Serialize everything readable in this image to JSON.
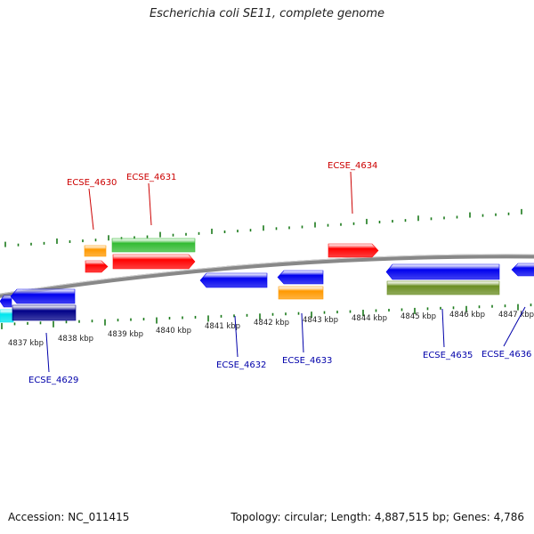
{
  "title": "Escherichia coli SE11, complete genome",
  "footer": {
    "accession": "Accession: NC_011415",
    "topology": "Topology: circular; Length: 4,887,515 bp; Genes: 4,786"
  },
  "colors": {
    "forward_label": "#cc0000",
    "reverse_label": "#0000aa",
    "tick": "#1a7a1a",
    "backbone": "#888888",
    "red": "#ff0000",
    "green": "#33bb33",
    "orange": "#ff9900",
    "blue": "#0000ee",
    "navy": "#000088",
    "olive": "#6b8e23",
    "cyan": "#00e5ee"
  },
  "axis_labels": [
    "4837 kbp",
    "4838 kbp",
    "4839 kbp",
    "4840 kbp",
    "4841 kbp",
    "4842 kbp",
    "4843 kbp",
    "4844 kbp",
    "4845 kbp",
    "4846 kbp",
    "4847 kbp"
  ],
  "gene_labels": [
    {
      "text": "ECSE_4630",
      "strand": "forward"
    },
    {
      "text": "ECSE_4631",
      "strand": "forward"
    },
    {
      "text": "ECSE_4634",
      "strand": "forward"
    },
    {
      "text": "ECSE_4629",
      "strand": "reverse"
    },
    {
      "text": "ECSE_4632",
      "strand": "reverse"
    },
    {
      "text": "ECSE_4633",
      "strand": "reverse"
    },
    {
      "text": "ECSE_4635",
      "strand": "reverse"
    },
    {
      "text": "ECSE_4636",
      "strand": "reverse"
    }
  ]
}
